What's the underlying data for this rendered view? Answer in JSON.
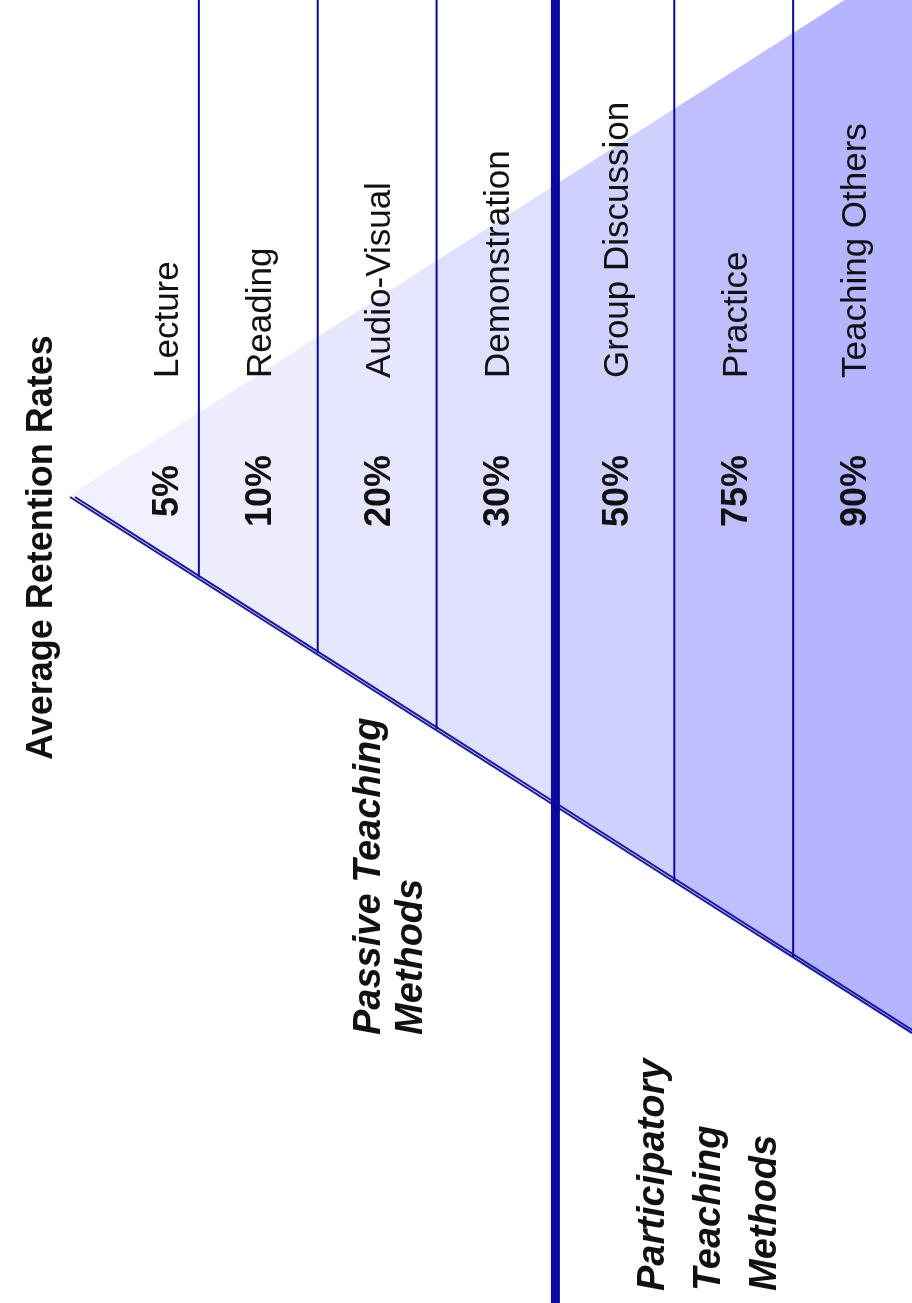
{
  "chart_data": {
    "type": "other",
    "title": "Average Retention Rates",
    "categories": [
      "Lecture",
      "Reading",
      "Audio-Visual",
      "Demonstration",
      "Group Discussion",
      "Practice",
      "Teaching Others"
    ],
    "values": [
      5,
      10,
      20,
      30,
      50,
      75,
      90
    ],
    "value_labels": [
      "5%",
      "10%",
      "20%",
      "30%",
      "50%",
      "75%",
      "90%"
    ],
    "annotations": [
      "Passive Teaching Methods",
      "Participatory Teaching Methods"
    ]
  }
}
